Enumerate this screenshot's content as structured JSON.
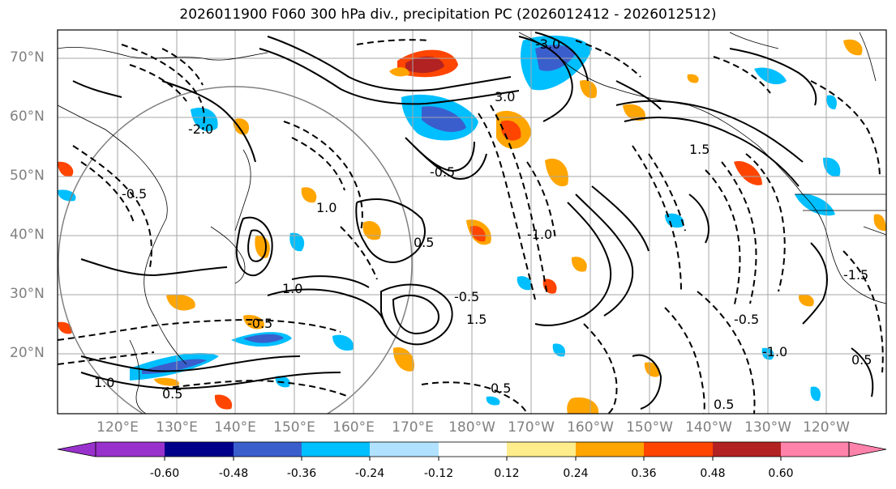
{
  "title": "2026011900 F060 300 hPa div., precipitation PC (2026012412 - 2026012512)",
  "map": {
    "lat_labels": [
      "70°N",
      "60°N",
      "50°N",
      "40°N",
      "30°N",
      "20°N"
    ],
    "lon_labels": [
      "120°E",
      "130°E",
      "140°E",
      "150°E",
      "160°E",
      "170°E",
      "180°W",
      "170°W",
      "160°W",
      "150°W",
      "140°W",
      "130°W",
      "120°W"
    ],
    "contour_labels": [
      "-0.5",
      "-0.5",
      "-0.5",
      "-1.0",
      "-1.5",
      "1.0",
      "1.0",
      "1.0",
      "0.5",
      "0.5",
      "0.5",
      "-0.5",
      "-2.0",
      "1.5",
      "-3.0",
      "3.0",
      "-1.0",
      "1.5",
      "0.5",
      "0.5",
      "-0.5"
    ],
    "colors": {
      "contour": "#000000",
      "grid": "#9e9e9e",
      "coast": "#000000",
      "circle": "#808080"
    }
  },
  "colorbar": {
    "ticks": [
      "-0.60",
      "-0.48",
      "-0.36",
      "-0.24",
      "-0.12",
      "0.12",
      "0.24",
      "0.36",
      "0.48",
      "0.60"
    ],
    "colors": [
      "#9932cc",
      "#00008b",
      "#3a5fcd",
      "#00bfff",
      "#b0e2ff",
      "#ffffff",
      "#ffec8b",
      "#ffa500",
      "#ff4500",
      "#b22222",
      "#ff82ab"
    ]
  }
}
